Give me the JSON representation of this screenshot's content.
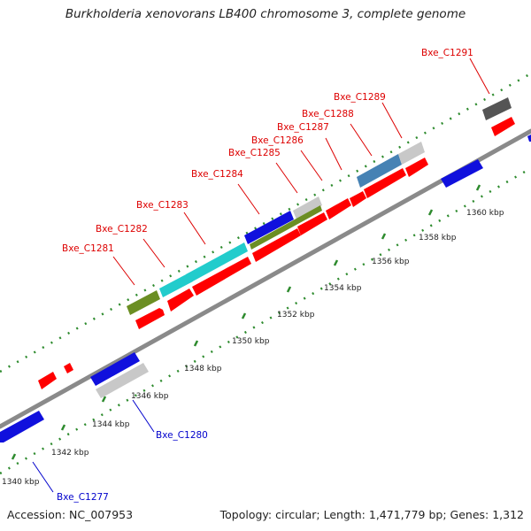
{
  "title": "Burkholderia xenovorans LB400 chromosome 3, complete genome",
  "footer": {
    "accession": "Accession: NC_007953",
    "summary": "Topology: circular; Length: 1,471,779 bp; Genes: 1,312"
  },
  "colors": {
    "backbone": "#8a8a8a",
    "ticks": "#2e8b2e",
    "forward_label": "#dd0000",
    "reverse_label": "#0000cc",
    "red": "#ff0000",
    "blue": "#1010dd",
    "cyan": "#22cccc",
    "olive": "#6b8e23",
    "steelblue": "#4682b4",
    "lightgray": "#c8c8c8",
    "darkgray": "#555555"
  },
  "ticks": [
    {
      "label": "1340 kbp"
    },
    {
      "label": "1342 kbp"
    },
    {
      "label": "1344 kbp"
    },
    {
      "label": "1346 kbp"
    },
    {
      "label": "1348 kbp"
    },
    {
      "label": "1350 kbp"
    },
    {
      "label": "1352 kbp"
    },
    {
      "label": "1354 kbp"
    },
    {
      "label": "1356 kbp"
    },
    {
      "label": "1358 kbp"
    },
    {
      "label": "1360 kbp"
    }
  ],
  "gene_labels": [
    {
      "text": "Bxe_C1277",
      "strand": "reverse"
    },
    {
      "text": "Bxe_C1280",
      "strand": "reverse"
    },
    {
      "text": "Bxe_C1281",
      "strand": "forward"
    },
    {
      "text": "Bxe_C1282",
      "strand": "forward"
    },
    {
      "text": "Bxe_C1283",
      "strand": "forward"
    },
    {
      "text": "Bxe_C1284",
      "strand": "forward"
    },
    {
      "text": "Bxe_C1285",
      "strand": "forward"
    },
    {
      "text": "Bxe_C1286",
      "strand": "forward"
    },
    {
      "text": "Bxe_C1287",
      "strand": "forward"
    },
    {
      "text": "Bxe_C1288",
      "strand": "forward"
    },
    {
      "text": "Bxe_C1289",
      "strand": "forward"
    },
    {
      "text": "Bxe_C1291",
      "strand": "forward"
    }
  ]
}
